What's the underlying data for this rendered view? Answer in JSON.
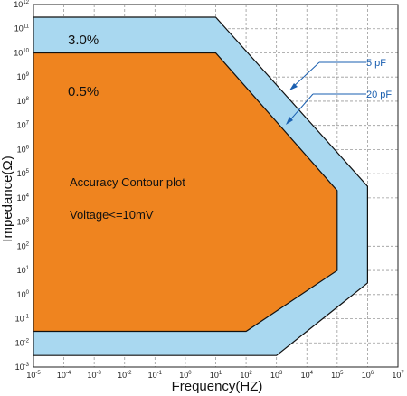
{
  "chart_data": {
    "type": "area",
    "xlabel": "Frequency(HZ)",
    "ylabel": "Impedance(Ω)",
    "x_scale": "log",
    "y_scale": "log",
    "xlim": [
      1e-05,
      10000000.0
    ],
    "ylim": [
      0.001,
      1000000000000.0
    ],
    "grid": true,
    "x_ticks": [
      "10-5",
      "10-4",
      "10-3",
      "10-2",
      "10-1",
      "100",
      "101",
      "102",
      "103",
      "104",
      "105",
      "106",
      "107"
    ],
    "y_ticks": [
      "10-3",
      "10-2",
      "10-1",
      "100",
      "101",
      "102",
      "103",
      "104",
      "105",
      "106",
      "107",
      "108",
      "109",
      "1010",
      "1011",
      "1012"
    ],
    "series": [
      {
        "name": "3.0%",
        "color": "#a9d8f0",
        "points": [
          [
            1e-05,
            300000000000.0
          ],
          [
            10,
            300000000000.0
          ],
          [
            1000000.0,
            30000.0
          ],
          [
            1000000.0,
            3.0
          ],
          [
            1000.0,
            0.003
          ],
          [
            1e-05,
            0.003
          ]
        ]
      },
      {
        "name": "0.5%",
        "color": "#ef841f",
        "points": [
          [
            1e-05,
            10000000000.0
          ],
          [
            10,
            10000000000.0
          ],
          [
            100000.0,
            20000.0
          ],
          [
            100000.0,
            10.0
          ],
          [
            100.0,
            0.03
          ],
          [
            1e-05,
            0.03
          ]
        ]
      }
    ],
    "annotations": [
      {
        "text": "Accuracy Contour plot",
        "x": 0.0001,
        "y": 300000.0
      },
      {
        "text": "Voltage<=10mV",
        "x": 0.0001,
        "y": 4000.0
      }
    ],
    "capacitance_callouts": [
      {
        "text": "5 pF",
        "color": "#1a5fb0"
      },
      {
        "text": "20 pF",
        "color": "#1a5fb0"
      }
    ]
  }
}
